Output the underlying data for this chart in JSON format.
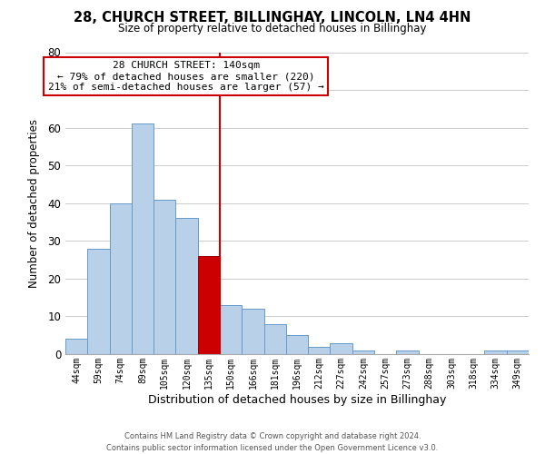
{
  "title_line1": "28, CHURCH STREET, BILLINGHAY, LINCOLN, LN4 4HN",
  "title_line2": "Size of property relative to detached houses in Billinghay",
  "xlabel": "Distribution of detached houses by size in Billinghay",
  "ylabel": "Number of detached properties",
  "bar_labels": [
    "44sqm",
    "59sqm",
    "74sqm",
    "89sqm",
    "105sqm",
    "120sqm",
    "135sqm",
    "150sqm",
    "166sqm",
    "181sqm",
    "196sqm",
    "212sqm",
    "227sqm",
    "242sqm",
    "257sqm",
    "273sqm",
    "288sqm",
    "303sqm",
    "318sqm",
    "334sqm",
    "349sqm"
  ],
  "bar_heights": [
    4,
    28,
    40,
    61,
    41,
    36,
    26,
    13,
    12,
    8,
    5,
    2,
    3,
    1,
    0,
    1,
    0,
    0,
    0,
    1,
    1
  ],
  "bar_color": "#b8d0e8",
  "bar_edge_color": "#6699cc",
  "highlight_bar_index": 6,
  "highlight_color": "#cc0000",
  "highlight_edge_color": "#990000",
  "vline_color": "#cc0000",
  "ylim": [
    0,
    80
  ],
  "yticks": [
    0,
    10,
    20,
    30,
    40,
    50,
    60,
    70,
    80
  ],
  "annotation_title": "28 CHURCH STREET: 140sqm",
  "annotation_line1": "← 79% of detached houses are smaller (220)",
  "annotation_line2": "21% of semi-detached houses are larger (57) →",
  "annotation_box_color": "#ffffff",
  "annotation_box_edge_color": "#cc0000",
  "footer_line1": "Contains HM Land Registry data © Crown copyright and database right 2024.",
  "footer_line2": "Contains public sector information licensed under the Open Government Licence v3.0.",
  "background_color": "#ffffff",
  "grid_color": "#cccccc"
}
